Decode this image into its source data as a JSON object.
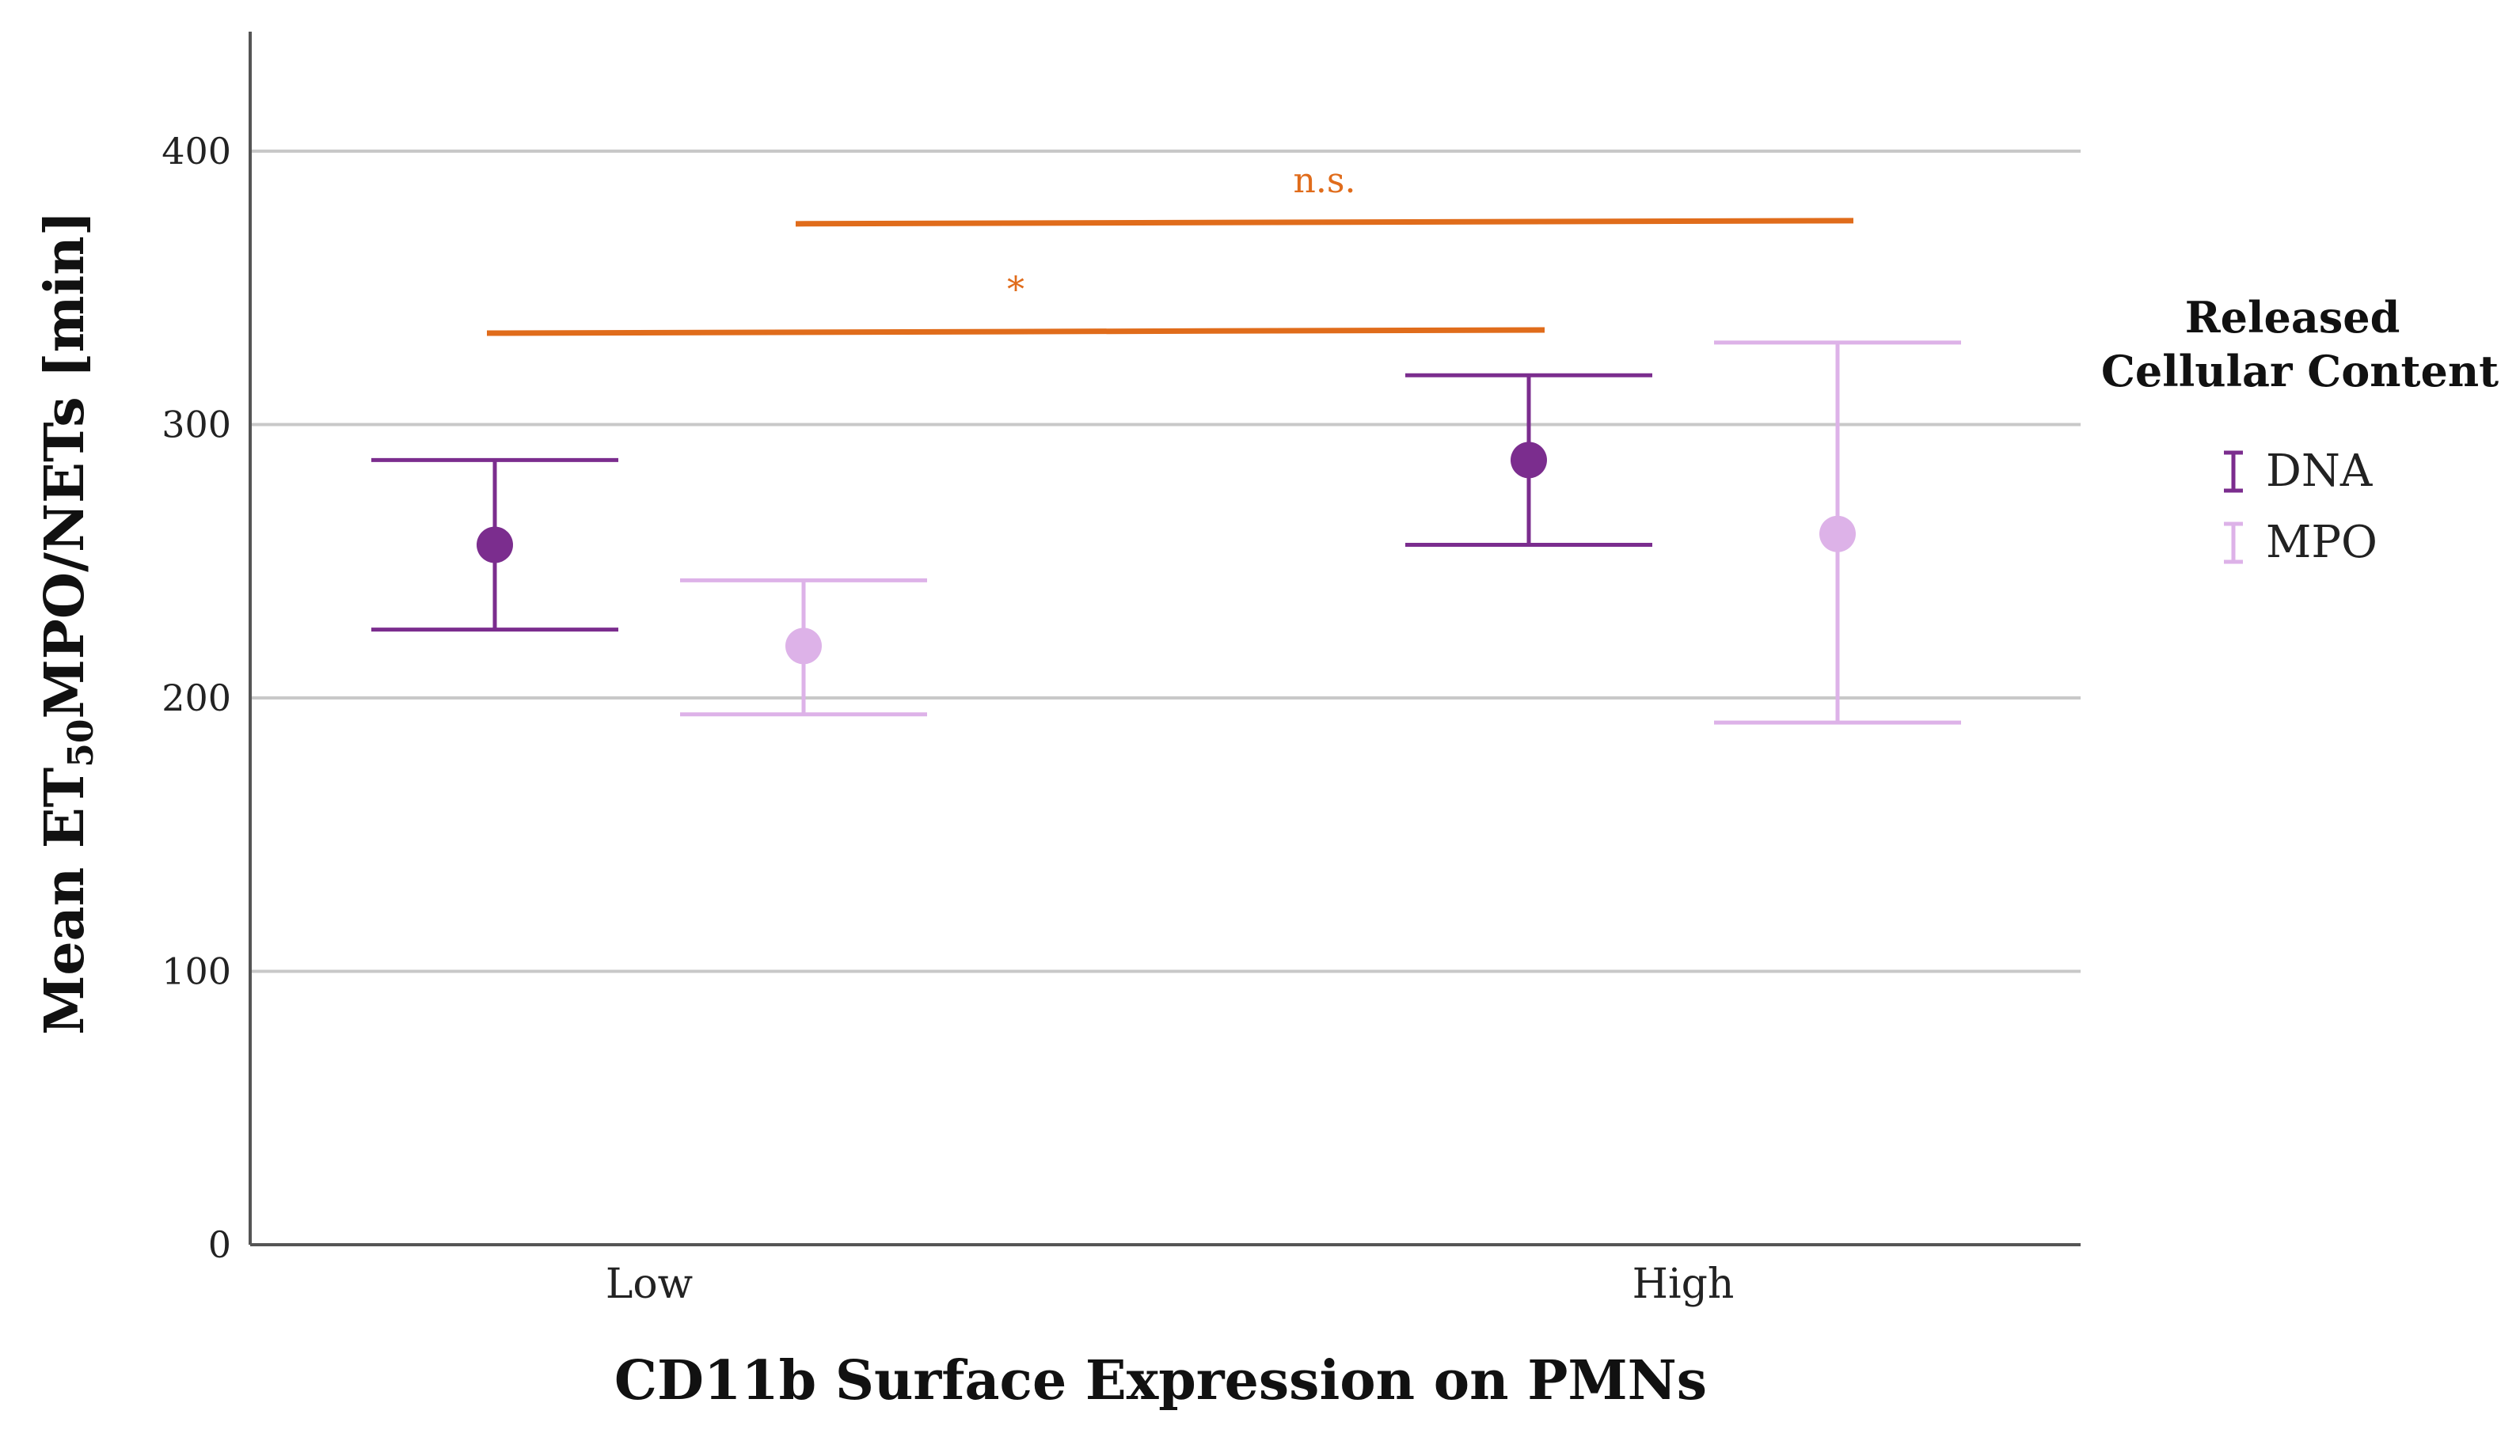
{
  "chart_data": {
    "type": "scatter",
    "subtype": "error-bar",
    "xlabel": "CD11b Surface Expression on PMNs",
    "ylabel": {
      "prefix": "Mean ET",
      "subscript": "50",
      "suffix": "MPO/NETs [min]"
    },
    "categories": [
      "Low",
      "High"
    ],
    "ylim": [
      0,
      440
    ],
    "yticks": [
      0,
      100,
      200,
      300,
      400
    ],
    "grid": true,
    "legend": {
      "title_lines": [
        "Released",
        "Cellular Content"
      ],
      "position": "right"
    },
    "series": [
      {
        "name": "DNA",
        "color": "#7B2D8E",
        "points": [
          {
            "category": "Low",
            "mean": 256,
            "lower": 225,
            "upper": 287
          },
          {
            "category": "High",
            "mean": 287,
            "lower": 256,
            "upper": 318
          }
        ]
      },
      {
        "name": "MPO",
        "color": "#DDB2E8",
        "points": [
          {
            "category": "Low",
            "mean": 219,
            "lower": 194,
            "upper": 243
          },
          {
            "category": "High",
            "mean": 260,
            "lower": 191,
            "upper": 330
          }
        ]
      }
    ],
    "significance": [
      {
        "label": "*",
        "from": {
          "category": "Low",
          "series": "DNA"
        },
        "to": {
          "category": "High",
          "series": "DNA"
        },
        "y": 334
      },
      {
        "label": "n.s.",
        "from": {
          "category": "Low",
          "series": "MPO"
        },
        "to": {
          "category": "High",
          "series": "MPO"
        },
        "y": 374
      }
    ],
    "significance_color": "#E06C1B"
  }
}
